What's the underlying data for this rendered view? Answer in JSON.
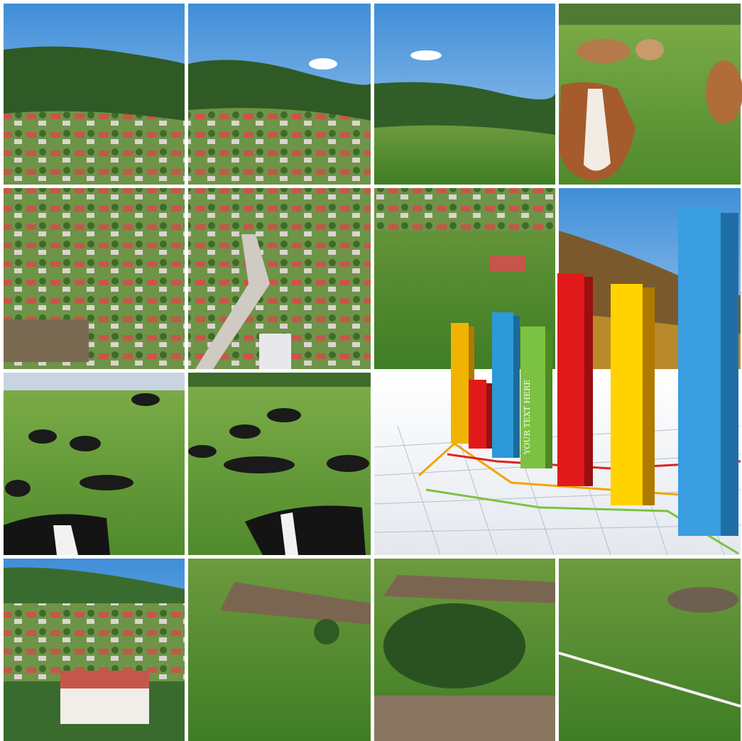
{
  "bar_text": "YOUR TEXT HERE"
}
